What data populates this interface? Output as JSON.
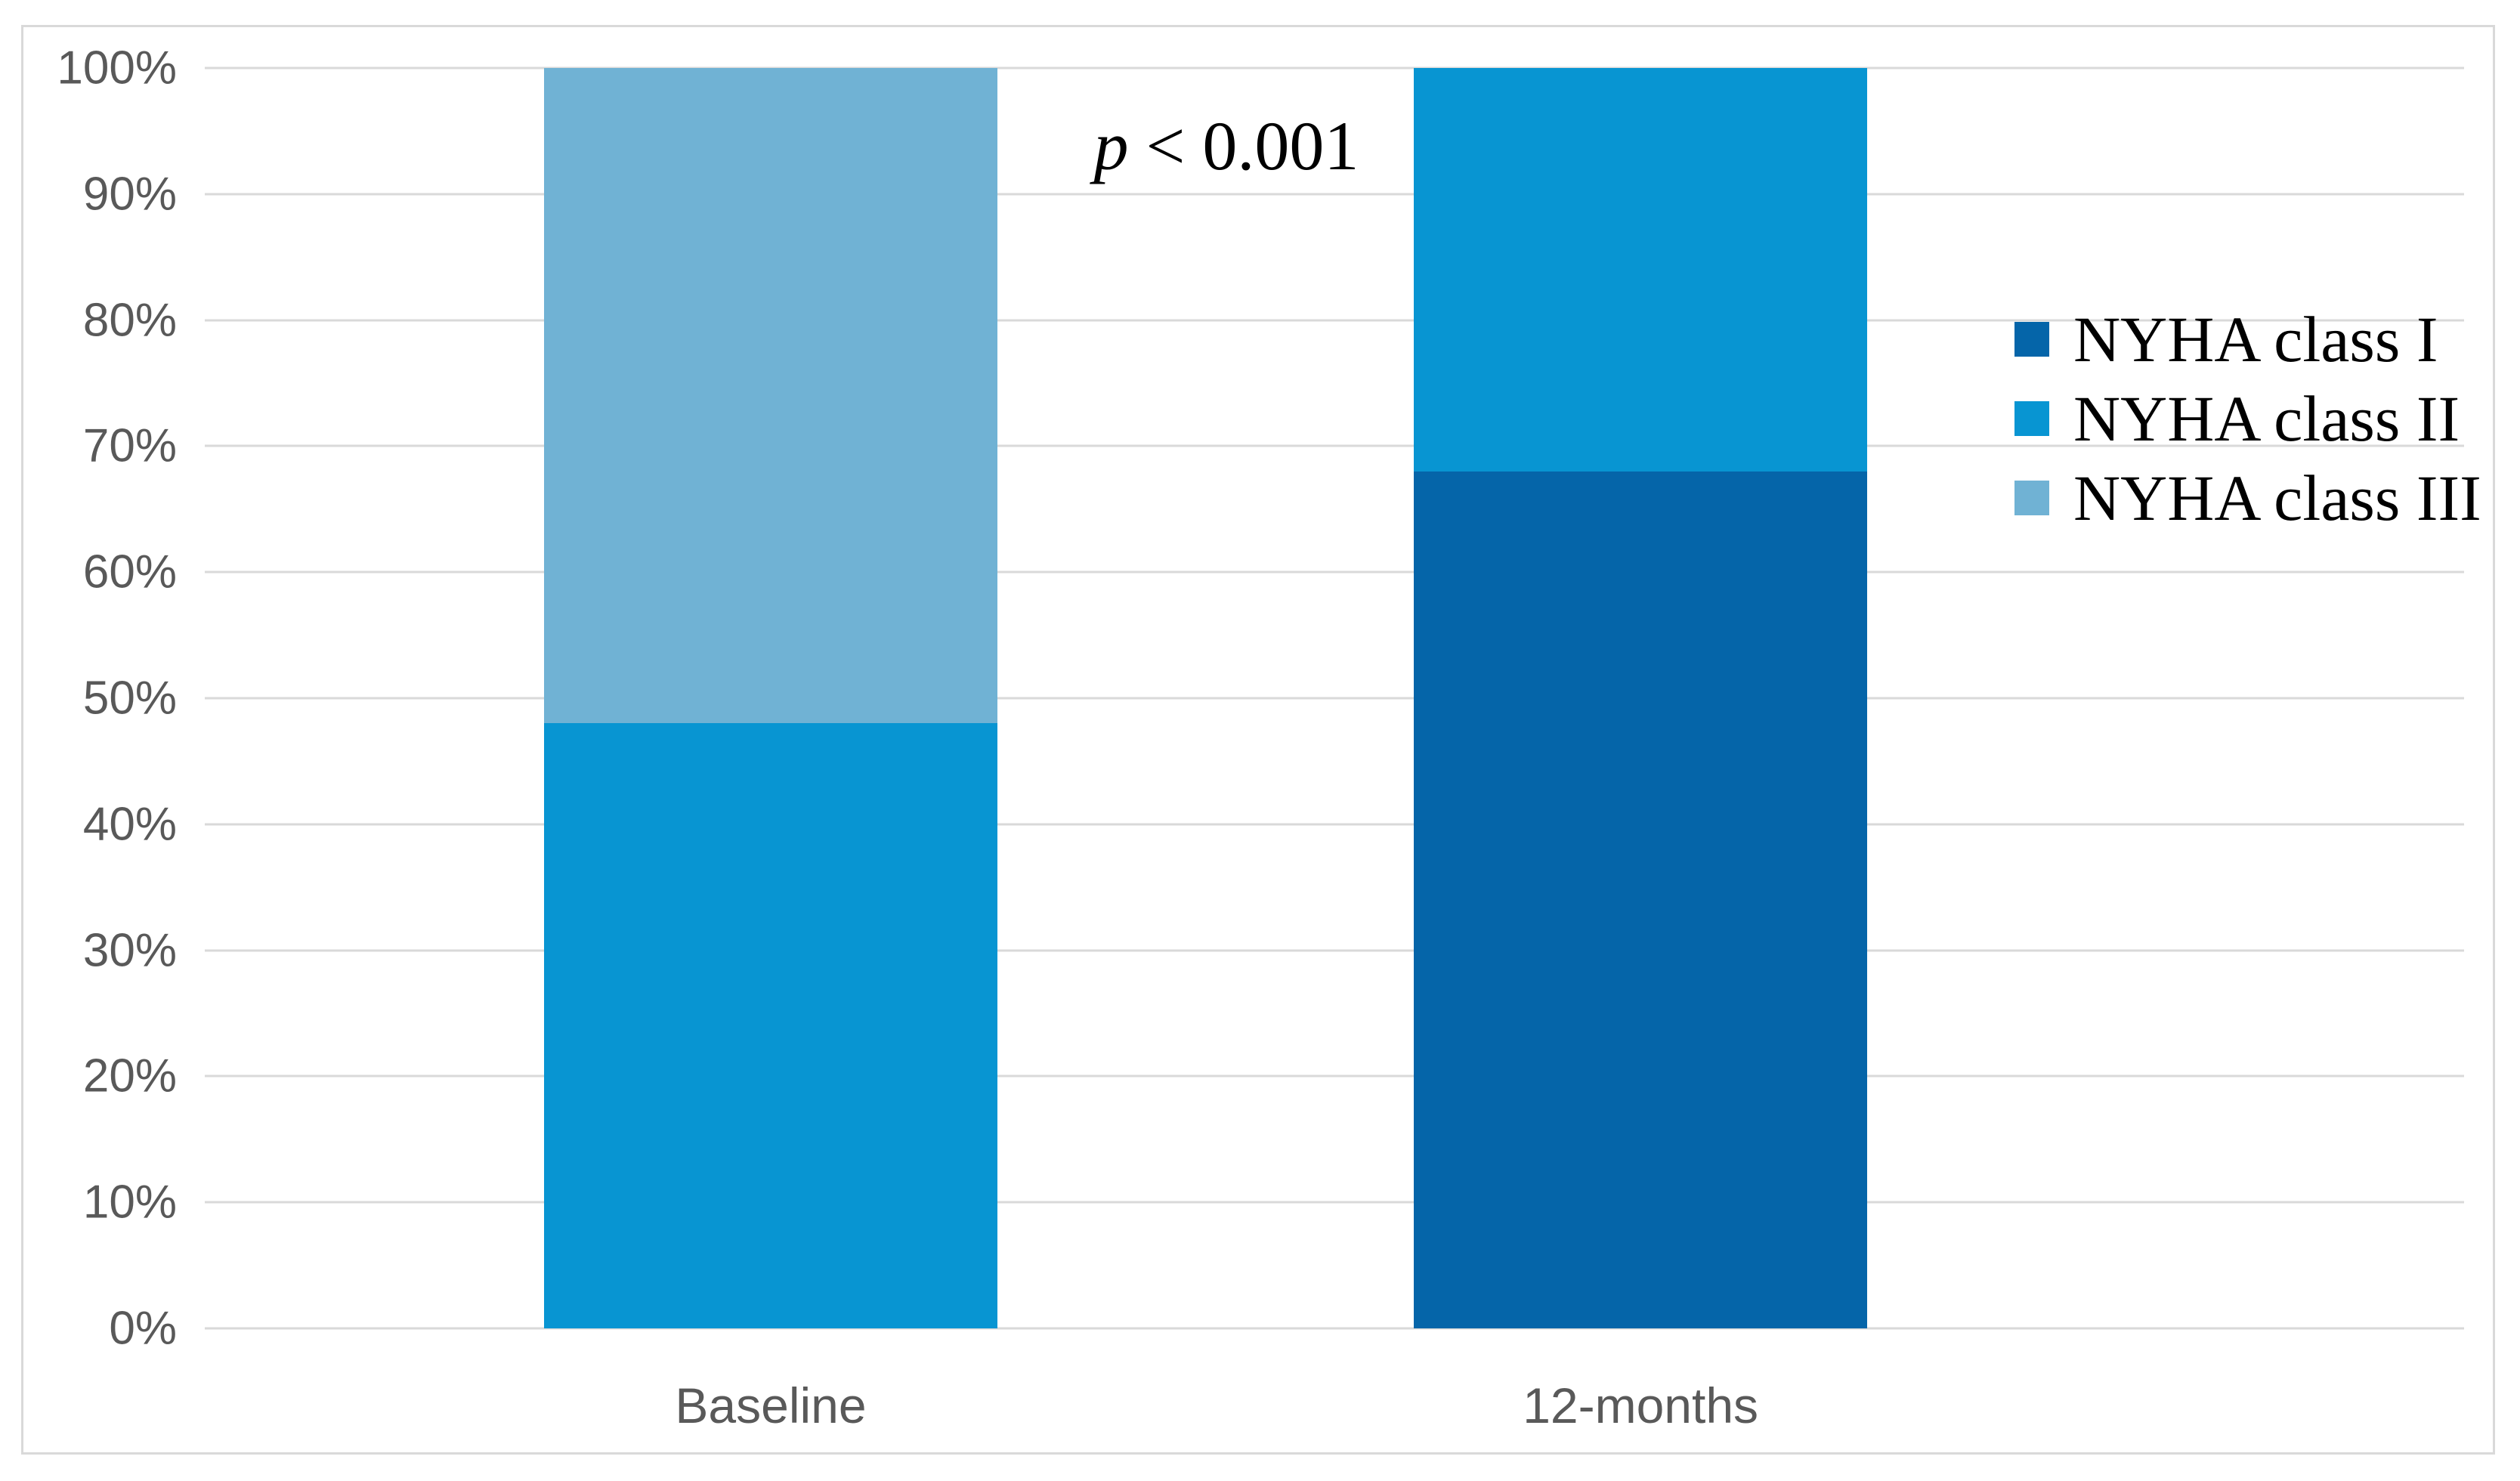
{
  "figure": {
    "background": "#ffffff",
    "border_color": "#d9d9d9"
  },
  "annotation": {
    "italic_part": "p",
    "rest_part": " < 0.001"
  },
  "chart_data": {
    "type": "bar",
    "subtype": "stacked-100-percent-column",
    "title": "",
    "xlabel": "",
    "ylabel": "",
    "categories": [
      "Baseline",
      "12-months"
    ],
    "series": [
      {
        "name": "NYHA class I",
        "color": "#0565A9",
        "values": [
          0,
          68
        ]
      },
      {
        "name": "NYHA class II",
        "color": "#0895D2",
        "values": [
          48,
          32
        ]
      },
      {
        "name": "NYHA class III",
        "color": "#70B2D4",
        "values": [
          52,
          0
        ]
      }
    ],
    "ylim": [
      0,
      100
    ],
    "ytick_step": 10,
    "ytick_labels": [
      "0%",
      "10%",
      "20%",
      "30%",
      "40%",
      "50%",
      "60%",
      "70%",
      "80%",
      "90%",
      "100%"
    ],
    "grid": true,
    "gridline_color": "#d9d9d9",
    "axis_text_color": "#595959",
    "legend_position": "right-inside",
    "legend_entries": [
      "NYHA class I",
      "NYHA class II",
      "NYHA class III"
    ],
    "annotation": "p < 0.001"
  }
}
